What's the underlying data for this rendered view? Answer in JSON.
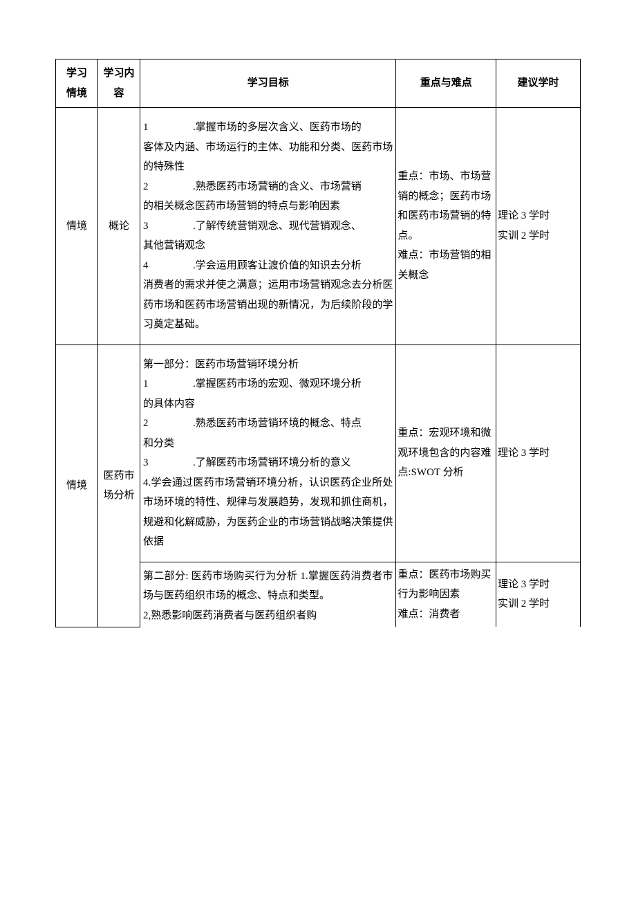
{
  "headers": {
    "col1_line1": "学习",
    "col1_line2": "情境",
    "col2": "学习内容",
    "col3": "学习目标",
    "col4": "重点与难点",
    "col5": "建议学时"
  },
  "rows": [
    {
      "scene": "情境",
      "content": "概论",
      "objectives": {
        "items": [
          {
            "num": "1",
            "lead": ".掌握市场的多层次含义、医药市场的",
            "cont": "客体及内涵、市场运行的主体、功能和分类、医药市场的特殊性"
          },
          {
            "num": "2",
            "lead": ".熟悉医药市场营销的含义、市场营销",
            "cont": "的相关概念医药市场营销的特点与影响因素"
          },
          {
            "num": "3",
            "lead": ".了解传统营销观念、现代营销观念、",
            "cont": "其他营销观念"
          },
          {
            "num": "4",
            "lead": ".学会运用顾客让渡价值的知识去分析",
            "cont": "消费者的需求并使之满意；运用市场营销观念去分析医药市场和医药市场营销出现的新情况，为后续阶段的学习奠定基础。"
          }
        ]
      },
      "keypoints": "重点：市场、市场营销的概念；医药市场和医药市场营销的特点。\n难点：市场营销的相关概念",
      "hours": "理论 3 学时\n实训 2 学时"
    },
    {
      "scene": "情境",
      "content": "医药市场分析",
      "sections": [
        {
          "objectives": {
            "heading": "第一部分：医药市场营销环境分析",
            "items": [
              {
                "num": "1",
                "lead": ".掌握医药市场的宏观、微观环境分析",
                "cont": "的具体内容"
              },
              {
                "num": "2",
                "lead": ".熟悉医药市场营销环境的概念、特点",
                "cont": "和分类"
              },
              {
                "num": "3",
                "lead": ".了解医药市场营销环境分析的意义",
                "cont": ""
              }
            ],
            "trailing": "4.学会通过医药市场营销环境分析，认识医药企业所处市场环境的特性、规律与发展趋势，发现和抓住商机，规避和化解威胁，为医药企业的市场营销战略决策提供依据"
          },
          "keypoints": "重点：宏观环境和微观环境包含的内容难点:SWOT 分析",
          "hours": "理论 3 学时"
        },
        {
          "objectives": {
            "plain": "第二部分: 医药市场购买行为分析 1.掌握医药消费者市场与医药组织市场的概念、特点和类型。\n2,熟悉影响医药消费者与医药组织者购"
          },
          "keypoints": "重点：医药市场购买行为影响因素\n难点：消费者",
          "hours": "理论 3 学时\n实训 2 学时"
        }
      ]
    }
  ]
}
